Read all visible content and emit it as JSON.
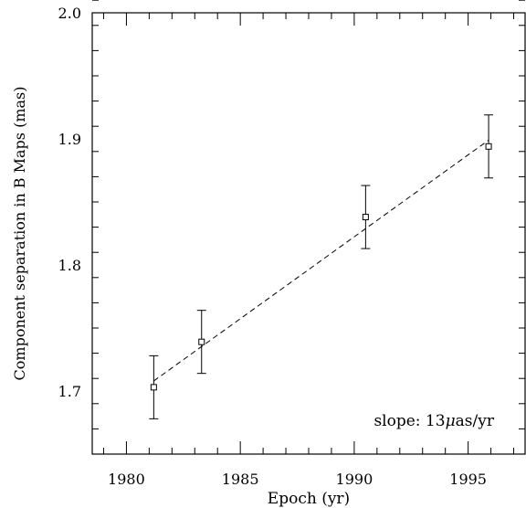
{
  "chart_data": {
    "type": "scatter",
    "title": "",
    "xlabel": "Epoch (yr)",
    "ylabel": "Component separation in B Maps (mas)",
    "xlim": [
      1978.5,
      1997.5
    ],
    "ylim": [
      1.65,
      2.0
    ],
    "grid": false,
    "x_ticks": [
      1980,
      1985,
      1990,
      1995
    ],
    "y_ticks": [
      1.7,
      1.8,
      1.9,
      2.0
    ],
    "x_tick_labels": [
      "1980",
      "1985",
      "1990",
      "1995"
    ],
    "y_tick_labels": [
      "1.7",
      "1.8",
      "1.9",
      "2.0"
    ],
    "x_minor_step": 1,
    "y_minor_step": 0.02,
    "points": [
      {
        "x": 1981.2,
        "y": 1.703,
        "err": 0.025
      },
      {
        "x": 1983.3,
        "y": 1.739,
        "err": 0.025
      },
      {
        "x": 1990.5,
        "y": 1.838,
        "err": 0.025
      },
      {
        "x": 1995.9,
        "y": 1.894,
        "err": 0.025
      }
    ],
    "fit_line": {
      "x": [
        1981.2,
        1995.9
      ],
      "y": [
        1.708,
        1.899
      ],
      "style": "dashed"
    },
    "annotation": {
      "prefix": "slope: 13",
      "mu": "μ",
      "suffix": "as/yr",
      "x": 1993.5,
      "y": 1.6725
    }
  }
}
